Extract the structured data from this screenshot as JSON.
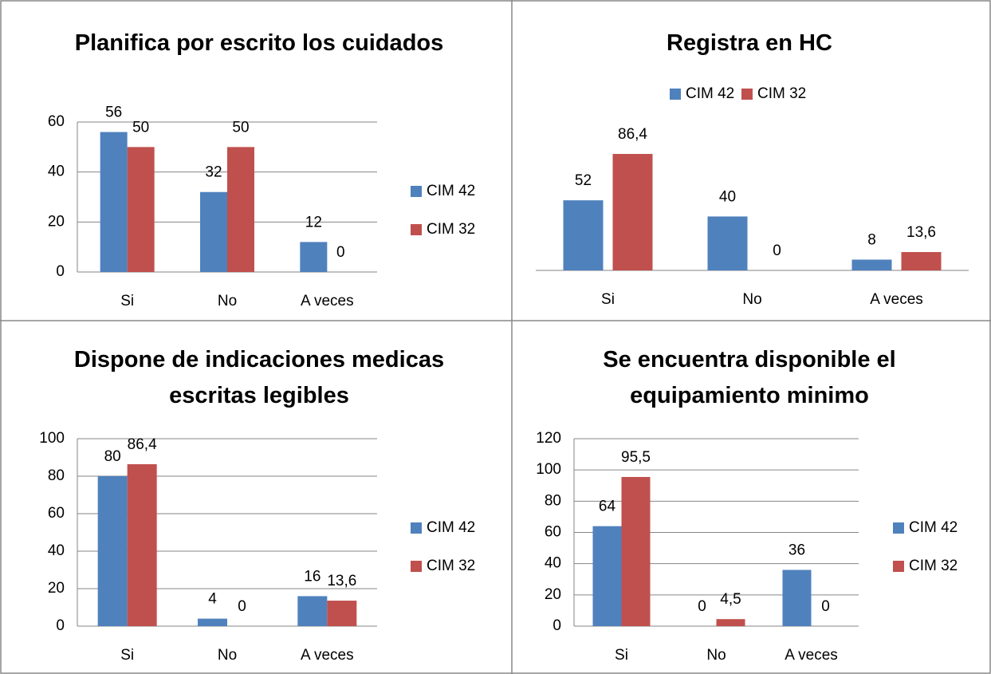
{
  "chart_data": [
    {
      "type": "bar",
      "title": "Planifica por escrito los cuidados",
      "categories": [
        "Si",
        "No",
        "A veces"
      ],
      "series": [
        {
          "name": "CIM 42",
          "color": "#4f81bd",
          "values": [
            56,
            32,
            12
          ]
        },
        {
          "name": "CIM 32",
          "color": "#c0504d",
          "values": [
            50,
            50,
            0
          ]
        }
      ],
      "ylim": [
        0,
        60
      ],
      "yticks": [
        0,
        20,
        40,
        60
      ],
      "grid": true,
      "legend": "right"
    },
    {
      "type": "bar",
      "title": "Registra en HC",
      "categories": [
        "Si",
        "No",
        "A veces"
      ],
      "series": [
        {
          "name": "CIM 42",
          "color": "#4f81bd",
          "values": [
            52,
            40,
            8
          ]
        },
        {
          "name": "CIM 32",
          "color": "#c0504d",
          "values": [
            86.4,
            0,
            13.6
          ],
          "value_labels": [
            "86,4",
            "0",
            "13,6"
          ]
        }
      ],
      "ylim": [
        0,
        100
      ],
      "grid": false,
      "legend": "top"
    },
    {
      "type": "bar",
      "title": "Dispone de indicaciones medicas escritas legibles",
      "categories": [
        "Si",
        "No",
        "A veces"
      ],
      "series": [
        {
          "name": "CIM 42",
          "color": "#4f81bd",
          "values": [
            80,
            4,
            16
          ]
        },
        {
          "name": "CIM 32",
          "color": "#c0504d",
          "values": [
            86.4,
            0,
            13.6
          ],
          "value_labels": [
            "86,4",
            "0",
            "13,6"
          ]
        }
      ],
      "ylim": [
        0,
        100
      ],
      "yticks": [
        0,
        20,
        40,
        60,
        80,
        100
      ],
      "grid": true,
      "legend": "right"
    },
    {
      "type": "bar",
      "title": "Se encuentra disponible el equipamiento minimo",
      "categories": [
        "Si",
        "No",
        "A veces"
      ],
      "series": [
        {
          "name": "CIM 42",
          "color": "#4f81bd",
          "values": [
            64,
            0,
            36
          ]
        },
        {
          "name": "CIM 32",
          "color": "#c0504d",
          "values": [
            95.5,
            4.5,
            0
          ],
          "value_labels": [
            "95,5",
            "4,5",
            "0"
          ]
        }
      ],
      "ylim": [
        0,
        120
      ],
      "yticks": [
        0,
        20,
        40,
        60,
        80,
        100,
        120
      ],
      "grid": true,
      "legend": "right"
    }
  ]
}
